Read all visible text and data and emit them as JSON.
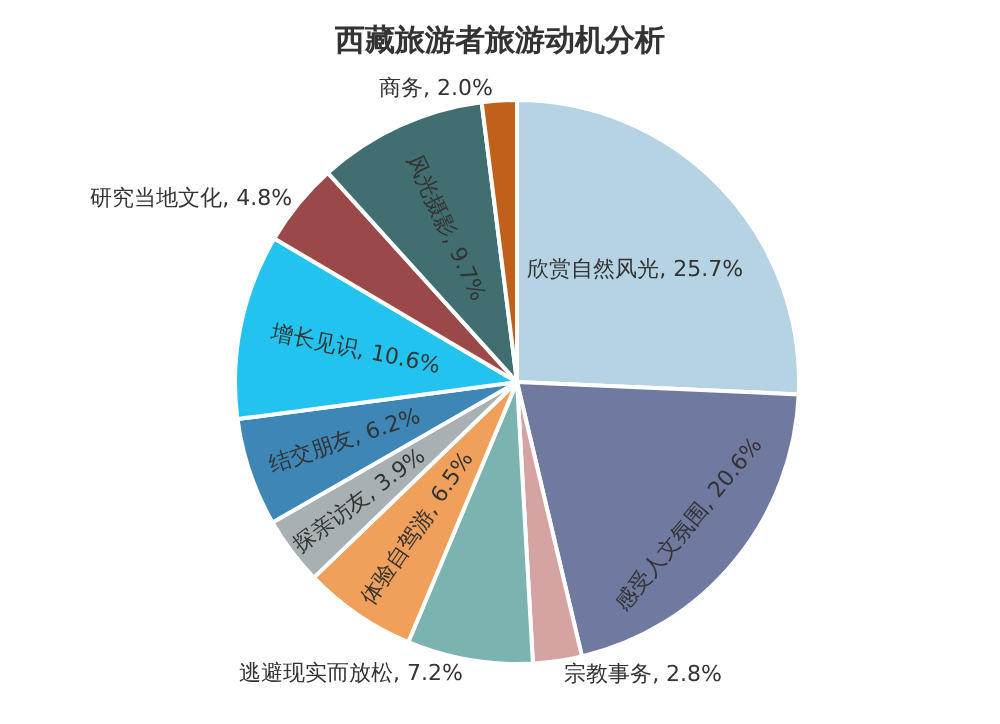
{
  "chart_data": {
    "type": "pie",
    "title": "西藏旅游者旅游动机分析",
    "categories": [
      "欣赏自然风光",
      "感受人文氛围",
      "宗教事务",
      "逃避现实而放松",
      "体验自驾游",
      "探亲访友",
      "结交朋友",
      "增长见识",
      "研究当地文化",
      "风光摄影",
      "商务"
    ],
    "values": [
      25.7,
      20.6,
      2.8,
      7.2,
      6.5,
      3.9,
      6.2,
      10.6,
      4.8,
      9.7,
      2.0
    ],
    "value_labels": [
      "25.7%",
      "20.6%",
      "2.8%",
      "7.2%",
      "6.5%",
      "3.9%",
      "6.2%",
      "10.6%",
      "4.8%",
      "9.7%",
      "2.0%"
    ],
    "colors": [
      "#b6d3e3",
      "#707aa0",
      "#d6a3a3",
      "#7ab3b0",
      "#f0a05a",
      "#a9b0b3",
      "#3e86b5",
      "#22c3ee",
      "#9b4848",
      "#416e70",
      "#c0601a"
    ],
    "legend": false
  }
}
